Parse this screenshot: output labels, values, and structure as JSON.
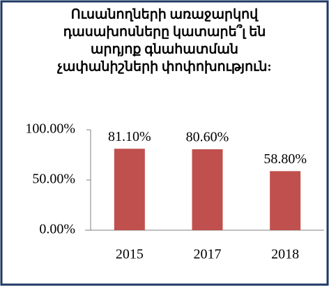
{
  "chart_data": {
    "type": "bar",
    "title": [
      "Ուսանողների առաջարկով",
      "դասախոսները կատարե՞լ են",
      "արդյոք գնահատման",
      "չափանիշների փոփոխություն:"
    ],
    "categories": [
      "2015",
      "2017",
      "2018"
    ],
    "values": [
      81.1,
      80.6,
      58.8
    ],
    "value_labels": [
      "81.10%",
      "80.60%",
      "58.80%"
    ],
    "color": "#c0504d",
    "ylim": [
      0,
      100
    ],
    "yticks": [
      {
        "value": 0,
        "label": "0.00%"
      },
      {
        "value": 50,
        "label": "50.00%"
      },
      {
        "value": 100,
        "label": "100.00%"
      }
    ],
    "grid": false
  }
}
